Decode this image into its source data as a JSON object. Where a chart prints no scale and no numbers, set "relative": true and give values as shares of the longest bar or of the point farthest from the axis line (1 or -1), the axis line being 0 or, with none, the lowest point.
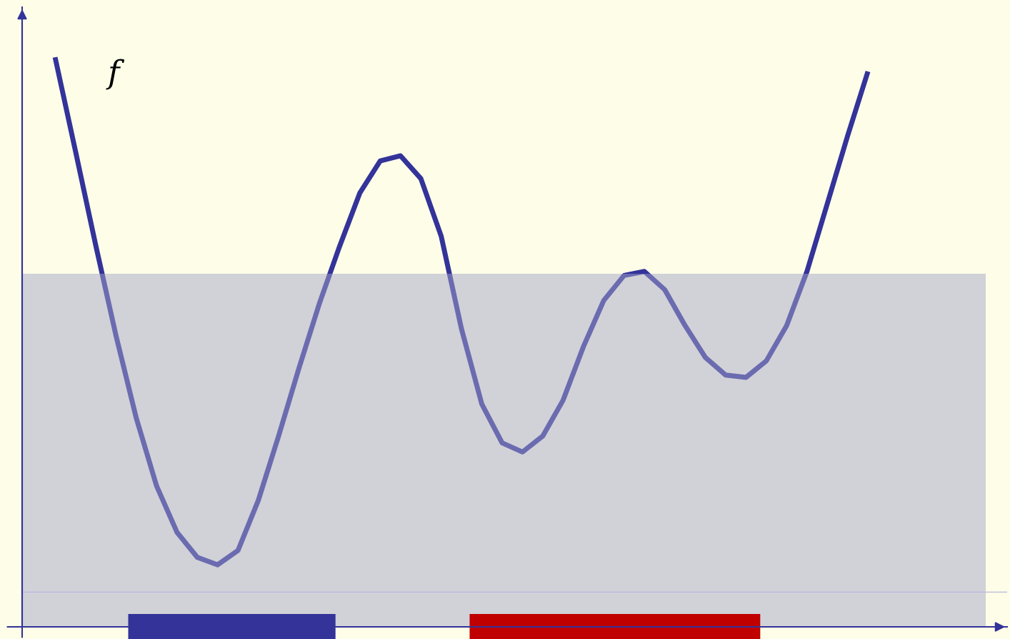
{
  "chart_data": {
    "type": "line",
    "relative": true,
    "categories": [
      null,
      null,
      null,
      null,
      null,
      null,
      null,
      null,
      null,
      null,
      null,
      null,
      null,
      null,
      null,
      null,
      null,
      null,
      null,
      null,
      null,
      null,
      null,
      null,
      null,
      null,
      null,
      null,
      null,
      null,
      null,
      null,
      null,
      null,
      null,
      null,
      null,
      null,
      null,
      null,
      null
    ],
    "series": [
      {
        "name": "f",
        "color": "#333399",
        "values": [
          1.0,
          0.836,
          0.67,
          0.511,
          0.366,
          0.247,
          0.166,
          0.122,
          0.109,
          0.134,
          0.222,
          0.335,
          0.454,
          0.567,
          0.668,
          0.762,
          0.818,
          0.827,
          0.787,
          0.686,
          0.523,
          0.391,
          0.323,
          0.307,
          0.335,
          0.398,
          0.492,
          0.573,
          0.617,
          0.624,
          0.592,
          0.529,
          0.473,
          0.442,
          0.438,
          0.467,
          0.529,
          0.624,
          0.743,
          0.862,
          0.975
        ]
      }
    ],
    "bands": [
      {
        "axis": "y",
        "from": 0,
        "to": 0.62,
        "color": "#a3a3c8"
      }
    ],
    "ref_lines": [
      {
        "axis": "y",
        "value": 0.061,
        "color": "#b8b8e0"
      }
    ],
    "legend": false,
    "marker": "none",
    "line_style": "solid"
  }
}
